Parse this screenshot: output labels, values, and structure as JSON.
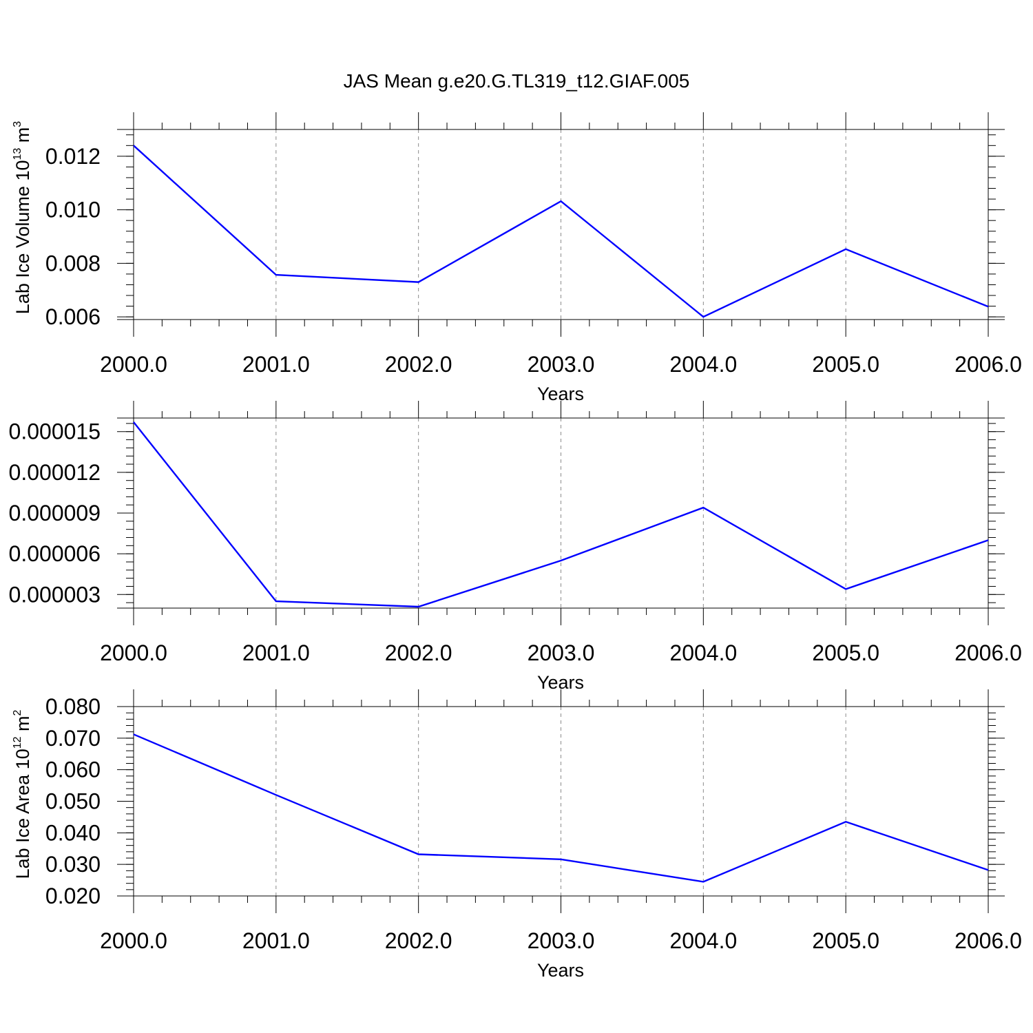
{
  "title": "JAS Mean g.e20.G.TL319_t12.GIAF.005",
  "series_color": "#0000ff",
  "chart_data": [
    {
      "type": "line",
      "xlabel": "Years",
      "ylabel": {
        "text": "Lab Ice Volume 10",
        "exponent": "13",
        "unit": " m",
        "unit_exponent": "3"
      },
      "x": [
        2000,
        2001,
        2002,
        2003,
        2004,
        2005,
        2006
      ],
      "y": [
        0.0124,
        0.00757,
        0.0073,
        0.01032,
        0.006,
        0.00853,
        0.00638
      ],
      "xlim": [
        2000,
        2006
      ],
      "ylim": [
        0.0059,
        0.013
      ],
      "x_ticks": [
        2000,
        2001,
        2002,
        2003,
        2004,
        2005,
        2006
      ],
      "x_tick_labels": [
        "2000.0",
        "2001.0",
        "2002.0",
        "2003.0",
        "2004.0",
        "2005.0",
        "2006.0"
      ],
      "y_ticks": [
        0.012,
        0.01,
        0.008,
        0.006
      ],
      "y_tick_labels": [
        "0.012",
        "0.010",
        "0.008",
        "0.006"
      ],
      "y_minor_step": 0.0004,
      "x_minor_step": 0.2,
      "vertical_grid": "dashed at major x ticks"
    },
    {
      "type": "line",
      "xlabel": "Years",
      "ylabel": null,
      "x": [
        2000,
        2001,
        2002,
        2003,
        2004,
        2005,
        2006
      ],
      "y": [
        1.57e-05,
        2.5e-06,
        2.1e-06,
        5.5e-06,
        9.4e-06,
        3.4e-06,
        7e-06
      ],
      "xlim": [
        2000,
        2006
      ],
      "ylim": [
        2e-06,
        1.6e-05
      ],
      "x_ticks": [
        2000,
        2001,
        2002,
        2003,
        2004,
        2005,
        2006
      ],
      "x_tick_labels": [
        "2000.0",
        "2001.0",
        "2002.0",
        "2003.0",
        "2004.0",
        "2005.0",
        "2006.0"
      ],
      "y_ticks": [
        1.5e-05,
        1.2e-05,
        9e-06,
        6e-06,
        3e-06
      ],
      "y_tick_labels": [
        "0.000015",
        "0.000012",
        "0.000009",
        "0.000006",
        "0.000003"
      ],
      "y_minor_step": 6e-07,
      "x_minor_step": 0.2,
      "vertical_grid": "dashed at major x ticks"
    },
    {
      "type": "line",
      "xlabel": "Years",
      "ylabel": {
        "text": "Lab Ice Area 10",
        "exponent": "12",
        "unit": " m",
        "unit_exponent": "2"
      },
      "x": [
        2000,
        2001,
        2002,
        2003,
        2004,
        2005,
        2006
      ],
      "y": [
        0.0712,
        0.052,
        0.0332,
        0.0316,
        0.0245,
        0.0435,
        0.0282
      ],
      "xlim": [
        2000,
        2006
      ],
      "ylim": [
        0.02,
        0.08
      ],
      "x_ticks": [
        2000,
        2001,
        2002,
        2003,
        2004,
        2005,
        2006
      ],
      "x_tick_labels": [
        "2000.0",
        "2001.0",
        "2002.0",
        "2003.0",
        "2004.0",
        "2005.0",
        "2006.0"
      ],
      "y_ticks": [
        0.08,
        0.07,
        0.06,
        0.05,
        0.04,
        0.03,
        0.02
      ],
      "y_tick_labels": [
        "0.080",
        "0.070",
        "0.060",
        "0.050",
        "0.040",
        "0.030",
        "0.020"
      ],
      "y_minor_step": 0.002,
      "x_minor_step": 0.2,
      "vertical_grid": "dashed at major x ticks"
    }
  ]
}
